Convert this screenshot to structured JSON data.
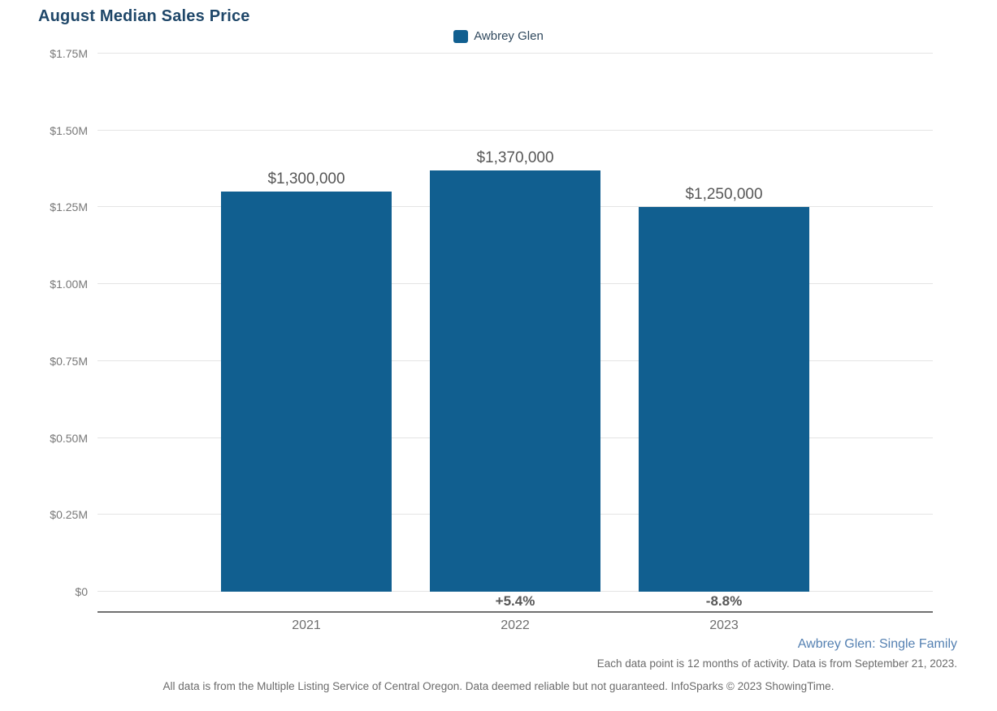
{
  "title": "August Median Sales Price",
  "legend": {
    "label": "Awbrey Glen",
    "swatch_color": "#115f90"
  },
  "chart_data": {
    "type": "bar",
    "title": "August Median Sales Price",
    "categories": [
      "2021",
      "2022",
      "2023"
    ],
    "series": [
      {
        "name": "Awbrey Glen",
        "values": [
          1300000,
          1370000,
          1250000
        ]
      }
    ],
    "bar_value_labels": [
      "$1,300,000",
      "$1,370,000",
      "$1,250,000"
    ],
    "pct_change_labels": [
      "",
      "+5.4%",
      "-8.8%"
    ],
    "y_ticks": [
      {
        "value": 0,
        "label": "$0"
      },
      {
        "value": 250000,
        "label": "$0.25M"
      },
      {
        "value": 500000,
        "label": "$0.50M"
      },
      {
        "value": 750000,
        "label": "$0.75M"
      },
      {
        "value": 1000000,
        "label": "$1.00M"
      },
      {
        "value": 1250000,
        "label": "$1.25M"
      },
      {
        "value": 1500000,
        "label": "$1.50M"
      },
      {
        "value": 1750000,
        "label": "$1.75M"
      }
    ],
    "ylim": [
      0,
      1750000
    ],
    "xlabel": "",
    "ylabel": "",
    "bar_color": "#115f90",
    "grid": true,
    "legend_position": "top-center"
  },
  "footnotes": {
    "series_note": "Awbrey Glen: Single Family",
    "data_note": "Each data point is 12 months of activity. Data is from September 21, 2023.",
    "disclaimer": "All data is from the Multiple Listing Service of Central Oregon. Data deemed reliable but not guaranteed. InfoSparks © 2023 ShowingTime."
  }
}
